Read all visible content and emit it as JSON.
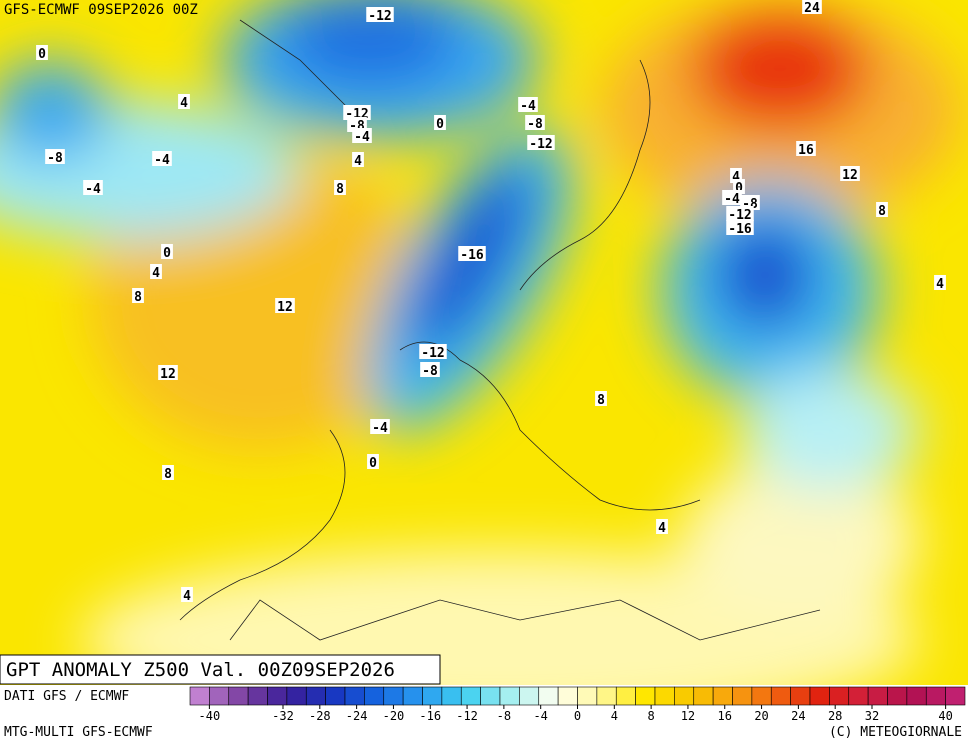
{
  "header": {
    "title": "GFS-ECMWF 09SEP2026 00Z"
  },
  "map": {
    "title": "GPT ANOMALY Z500 Val. 00Z09SEP2026",
    "contour_labels": [
      -12,
      24,
      0,
      4,
      -4,
      -8,
      -12,
      -8,
      -4,
      0,
      -12,
      -8,
      -4,
      4,
      16,
      12,
      -4,
      8,
      4,
      0,
      -4,
      -8,
      -12,
      -16,
      8,
      -16,
      0,
      4,
      8,
      12,
      4,
      -12,
      -8,
      12,
      8,
      -4,
      0,
      8,
      4,
      4
    ]
  },
  "footer": {
    "source": "DATI GFS / ECMWF",
    "model": "MTG-MULTI GFS-ECMWF",
    "copyright": "(C) METEOGIORNALE"
  },
  "colorbar": {
    "ticks": [
      -40,
      -32,
      -28,
      -24,
      -20,
      -16,
      -12,
      -8,
      -4,
      0,
      4,
      8,
      12,
      16,
      20,
      24,
      28,
      32,
      40
    ],
    "palette": [
      "#c080d0",
      "#7a3fa0",
      "#3a1f9a",
      "#1836c0",
      "#1566e0",
      "#2a9cf0",
      "#40d0f0",
      "#a8f0f0",
      "#fffff0",
      "#fff8a0",
      "#ffe800",
      "#f8c800",
      "#f8a010",
      "#f06010",
      "#e02010",
      "#d02040",
      "#b01050",
      "#c02070"
    ]
  }
}
